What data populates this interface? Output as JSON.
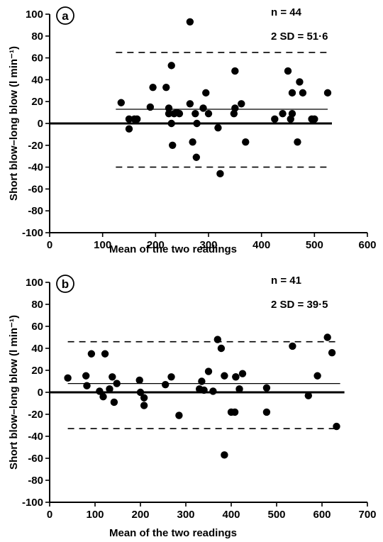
{
  "chart_data": [
    {
      "type": "scatter",
      "panel_label": "a",
      "n_label": "n = 44",
      "sd_label": "2 SD = 51·6",
      "xlabel": "Mean of the two readings",
      "ylabel": "Short blow–long blow (l min⁻¹)",
      "xlim": [
        0,
        600
      ],
      "ylim": [
        -100,
        100
      ],
      "xticks": [
        0,
        100,
        200,
        300,
        400,
        500,
        600
      ],
      "yticks": [
        -100,
        -80,
        -60,
        -40,
        -20,
        0,
        20,
        40,
        60,
        80,
        100
      ],
      "mean_line": {
        "value": 13,
        "x_range": [
          125,
          525
        ]
      },
      "limit_lines": [
        {
          "value": 65,
          "x_range": [
            125,
            525
          ]
        },
        {
          "value": -40,
          "x_range": [
            125,
            525
          ]
        }
      ],
      "zero_line": 0,
      "grid": false,
      "points": [
        {
          "x": 160,
          "y": 4
        },
        {
          "x": 135,
          "y": 19
        },
        {
          "x": 150,
          "y": 4
        },
        {
          "x": 165,
          "y": 4
        },
        {
          "x": 150,
          "y": -5
        },
        {
          "x": 190,
          "y": 15
        },
        {
          "x": 195,
          "y": 33
        },
        {
          "x": 220,
          "y": 33
        },
        {
          "x": 225,
          "y": 14
        },
        {
          "x": 225,
          "y": 9
        },
        {
          "x": 230,
          "y": 53
        },
        {
          "x": 232,
          "y": -20
        },
        {
          "x": 235,
          "y": 9
        },
        {
          "x": 240,
          "y": 10
        },
        {
          "x": 245,
          "y": 9
        },
        {
          "x": 265,
          "y": 93
        },
        {
          "x": 265,
          "y": 18
        },
        {
          "x": 270,
          "y": -17
        },
        {
          "x": 275,
          "y": 9
        },
        {
          "x": 277,
          "y": -31
        },
        {
          "x": 278,
          "y": 0
        },
        {
          "x": 290,
          "y": 14
        },
        {
          "x": 295,
          "y": 28
        },
        {
          "x": 300,
          "y": 9
        },
        {
          "x": 318,
          "y": -4
        },
        {
          "x": 322,
          "y": -46
        },
        {
          "x": 350,
          "y": 48
        },
        {
          "x": 350,
          "y": 14
        },
        {
          "x": 348,
          "y": 9
        },
        {
          "x": 362,
          "y": 18
        },
        {
          "x": 370,
          "y": -17
        },
        {
          "x": 425,
          "y": 4
        },
        {
          "x": 440,
          "y": 9
        },
        {
          "x": 450,
          "y": 48
        },
        {
          "x": 455,
          "y": 4
        },
        {
          "x": 458,
          "y": 28
        },
        {
          "x": 458,
          "y": 9
        },
        {
          "x": 468,
          "y": -17
        },
        {
          "x": 472,
          "y": 38
        },
        {
          "x": 478,
          "y": 28
        },
        {
          "x": 495,
          "y": 4
        },
        {
          "x": 500,
          "y": 4
        },
        {
          "x": 525,
          "y": 28
        },
        {
          "x": 230,
          "y": 0
        }
      ]
    },
    {
      "type": "scatter",
      "panel_label": "b",
      "n_label": "n = 41",
      "sd_label": "2 SD = 39·5",
      "xlabel": "Mean of the two readings",
      "ylabel": "Short blow–long blow (l min⁻¹)",
      "xlim": [
        0,
        700
      ],
      "ylim": [
        -100,
        100
      ],
      "xticks": [
        0,
        100,
        200,
        300,
        400,
        500,
        600,
        700
      ],
      "yticks": [
        -100,
        -80,
        -60,
        -40,
        -20,
        0,
        20,
        40,
        60,
        80,
        100
      ],
      "mean_line": {
        "value": 8,
        "x_range": [
          40,
          640
        ]
      },
      "limit_lines": [
        {
          "value": 46,
          "x_range": [
            40,
            640
          ]
        },
        {
          "value": -33,
          "x_range": [
            40,
            640
          ]
        }
      ],
      "zero_line": 0,
      "grid": false,
      "points": [
        {
          "x": 40,
          "y": 13
        },
        {
          "x": 80,
          "y": 15
        },
        {
          "x": 82,
          "y": 6
        },
        {
          "x": 92,
          "y": 35
        },
        {
          "x": 110,
          "y": 1
        },
        {
          "x": 118,
          "y": -4
        },
        {
          "x": 122,
          "y": 35
        },
        {
          "x": 132,
          "y": 3
        },
        {
          "x": 138,
          "y": 14
        },
        {
          "x": 142,
          "y": -9
        },
        {
          "x": 148,
          "y": 8
        },
        {
          "x": 198,
          "y": 11
        },
        {
          "x": 200,
          "y": 0
        },
        {
          "x": 208,
          "y": -5
        },
        {
          "x": 208,
          "y": -12
        },
        {
          "x": 255,
          "y": 7
        },
        {
          "x": 268,
          "y": 14
        },
        {
          "x": 285,
          "y": -21
        },
        {
          "x": 330,
          "y": 3
        },
        {
          "x": 335,
          "y": 10
        },
        {
          "x": 340,
          "y": 2
        },
        {
          "x": 350,
          "y": 19
        },
        {
          "x": 360,
          "y": 1
        },
        {
          "x": 370,
          "y": 48
        },
        {
          "x": 378,
          "y": 40
        },
        {
          "x": 385,
          "y": 15
        },
        {
          "x": 385,
          "y": -57
        },
        {
          "x": 400,
          "y": -18
        },
        {
          "x": 408,
          "y": -18
        },
        {
          "x": 410,
          "y": 14
        },
        {
          "x": 418,
          "y": 3
        },
        {
          "x": 425,
          "y": 17
        },
        {
          "x": 478,
          "y": 4
        },
        {
          "x": 478,
          "y": -18
        },
        {
          "x": 535,
          "y": 42
        },
        {
          "x": 570,
          "y": -3
        },
        {
          "x": 590,
          "y": 15
        },
        {
          "x": 612,
          "y": 50
        },
        {
          "x": 622,
          "y": 36
        },
        {
          "x": 632,
          "y": -31
        },
        {
          "x": 410,
          "y": 14
        }
      ]
    }
  ]
}
